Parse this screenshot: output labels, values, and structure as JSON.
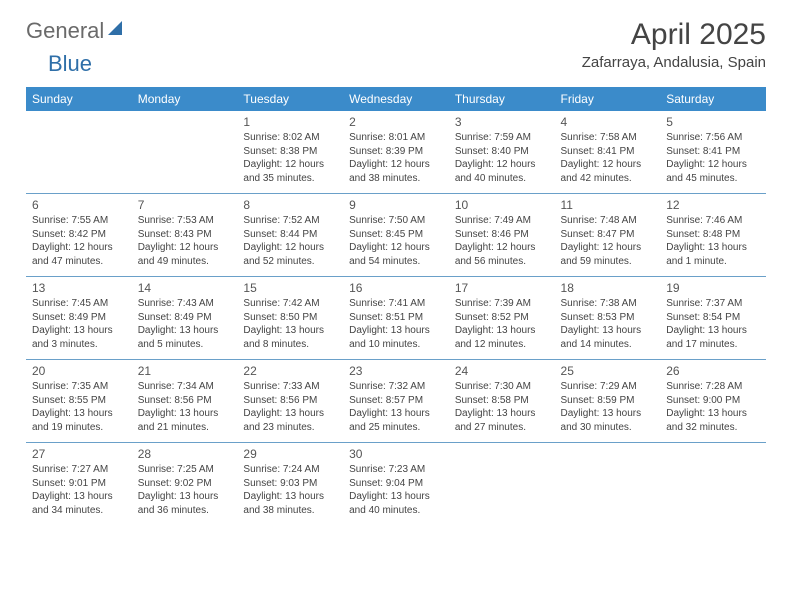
{
  "brand": {
    "part1": "General",
    "part2": "Blue"
  },
  "title": "April 2025",
  "location": "Zafarraya, Andalusia, Spain",
  "columns": [
    "Sunday",
    "Monday",
    "Tuesday",
    "Wednesday",
    "Thursday",
    "Friday",
    "Saturday"
  ],
  "colors": {
    "header_bg": "#3b8bca",
    "header_text": "#ffffff",
    "cell_border": "#6aa0c9",
    "text": "#444444",
    "logo_gray": "#6a6a6a",
    "logo_blue": "#2f6fa8",
    "background": "#ffffff"
  },
  "weeks": [
    [
      null,
      null,
      {
        "n": "1",
        "sr": "8:02 AM",
        "ss": "8:38 PM",
        "dl": "12 hours and 35 minutes."
      },
      {
        "n": "2",
        "sr": "8:01 AM",
        "ss": "8:39 PM",
        "dl": "12 hours and 38 minutes."
      },
      {
        "n": "3",
        "sr": "7:59 AM",
        "ss": "8:40 PM",
        "dl": "12 hours and 40 minutes."
      },
      {
        "n": "4",
        "sr": "7:58 AM",
        "ss": "8:41 PM",
        "dl": "12 hours and 42 minutes."
      },
      {
        "n": "5",
        "sr": "7:56 AM",
        "ss": "8:41 PM",
        "dl": "12 hours and 45 minutes."
      }
    ],
    [
      {
        "n": "6",
        "sr": "7:55 AM",
        "ss": "8:42 PM",
        "dl": "12 hours and 47 minutes."
      },
      {
        "n": "7",
        "sr": "7:53 AM",
        "ss": "8:43 PM",
        "dl": "12 hours and 49 minutes."
      },
      {
        "n": "8",
        "sr": "7:52 AM",
        "ss": "8:44 PM",
        "dl": "12 hours and 52 minutes."
      },
      {
        "n": "9",
        "sr": "7:50 AM",
        "ss": "8:45 PM",
        "dl": "12 hours and 54 minutes."
      },
      {
        "n": "10",
        "sr": "7:49 AM",
        "ss": "8:46 PM",
        "dl": "12 hours and 56 minutes."
      },
      {
        "n": "11",
        "sr": "7:48 AM",
        "ss": "8:47 PM",
        "dl": "12 hours and 59 minutes."
      },
      {
        "n": "12",
        "sr": "7:46 AM",
        "ss": "8:48 PM",
        "dl": "13 hours and 1 minute."
      }
    ],
    [
      {
        "n": "13",
        "sr": "7:45 AM",
        "ss": "8:49 PM",
        "dl": "13 hours and 3 minutes."
      },
      {
        "n": "14",
        "sr": "7:43 AM",
        "ss": "8:49 PM",
        "dl": "13 hours and 5 minutes."
      },
      {
        "n": "15",
        "sr": "7:42 AM",
        "ss": "8:50 PM",
        "dl": "13 hours and 8 minutes."
      },
      {
        "n": "16",
        "sr": "7:41 AM",
        "ss": "8:51 PM",
        "dl": "13 hours and 10 minutes."
      },
      {
        "n": "17",
        "sr": "7:39 AM",
        "ss": "8:52 PM",
        "dl": "13 hours and 12 minutes."
      },
      {
        "n": "18",
        "sr": "7:38 AM",
        "ss": "8:53 PM",
        "dl": "13 hours and 14 minutes."
      },
      {
        "n": "19",
        "sr": "7:37 AM",
        "ss": "8:54 PM",
        "dl": "13 hours and 17 minutes."
      }
    ],
    [
      {
        "n": "20",
        "sr": "7:35 AM",
        "ss": "8:55 PM",
        "dl": "13 hours and 19 minutes."
      },
      {
        "n": "21",
        "sr": "7:34 AM",
        "ss": "8:56 PM",
        "dl": "13 hours and 21 minutes."
      },
      {
        "n": "22",
        "sr": "7:33 AM",
        "ss": "8:56 PM",
        "dl": "13 hours and 23 minutes."
      },
      {
        "n": "23",
        "sr": "7:32 AM",
        "ss": "8:57 PM",
        "dl": "13 hours and 25 minutes."
      },
      {
        "n": "24",
        "sr": "7:30 AM",
        "ss": "8:58 PM",
        "dl": "13 hours and 27 minutes."
      },
      {
        "n": "25",
        "sr": "7:29 AM",
        "ss": "8:59 PM",
        "dl": "13 hours and 30 minutes."
      },
      {
        "n": "26",
        "sr": "7:28 AM",
        "ss": "9:00 PM",
        "dl": "13 hours and 32 minutes."
      }
    ],
    [
      {
        "n": "27",
        "sr": "7:27 AM",
        "ss": "9:01 PM",
        "dl": "13 hours and 34 minutes."
      },
      {
        "n": "28",
        "sr": "7:25 AM",
        "ss": "9:02 PM",
        "dl": "13 hours and 36 minutes."
      },
      {
        "n": "29",
        "sr": "7:24 AM",
        "ss": "9:03 PM",
        "dl": "13 hours and 38 minutes."
      },
      {
        "n": "30",
        "sr": "7:23 AM",
        "ss": "9:04 PM",
        "dl": "13 hours and 40 minutes."
      },
      null,
      null,
      null
    ]
  ],
  "labels": {
    "sunrise": "Sunrise: ",
    "sunset": "Sunset: ",
    "daylight": "Daylight: "
  }
}
